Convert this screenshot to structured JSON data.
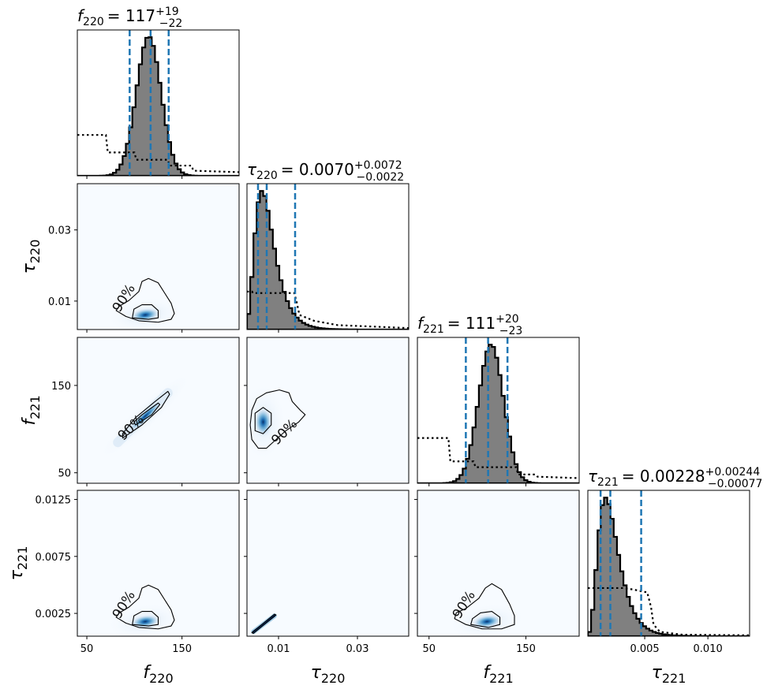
{
  "chart_data": {
    "type": "corner",
    "parameters": [
      {
        "name": "f220",
        "sym": "f",
        "sub": "220",
        "range": [
          40,
          210
        ],
        "ticks": [
          50,
          150
        ],
        "title": {
          "prefix": "= ",
          "value": "117",
          "plus": "+19",
          "minus": "−22"
        },
        "median": 117,
        "lower": 95,
        "upper": 136,
        "mode": 115,
        "sd": 13,
        "skew": 0,
        "prior": [
          {
            "x": 40,
            "y": 0.28
          },
          {
            "x": 70,
            "y": 0.28
          },
          {
            "x": 72,
            "y": 0.16
          },
          {
            "x": 100,
            "y": 0.16
          },
          {
            "x": 102,
            "y": 0.11
          },
          {
            "x": 135,
            "y": 0.11
          },
          {
            "x": 137,
            "y": 0.07
          },
          {
            "x": 160,
            "y": 0.07
          },
          {
            "x": 162,
            "y": 0.035
          },
          {
            "x": 210,
            "y": 0.025
          }
        ]
      },
      {
        "name": "tau220",
        "sym": "τ",
        "sub": "220",
        "range": [
          0.002,
          0.043
        ],
        "ticks": [
          0.01,
          0.03
        ],
        "title": {
          "prefix": "= ",
          "value": "0.0070",
          "plus": "+0.0072",
          "minus": "−0.0022"
        },
        "median": 0.007,
        "lower": 0.0048,
        "upper": 0.0142,
        "mode": 0.0058,
        "sd": 0.0022,
        "skew": 1,
        "prior": [
          {
            "x": 0.002,
            "y": 0.26
          },
          {
            "x": 0.0033,
            "y": 0.26
          },
          {
            "x": 0.0035,
            "y": 0.25
          },
          {
            "x": 0.014,
            "y": 0.25
          },
          {
            "x": 0.0145,
            "y": 0.2
          },
          {
            "x": 0.0153,
            "y": 0.1
          },
          {
            "x": 0.019,
            "y": 0.06
          },
          {
            "x": 0.025,
            "y": 0.03
          },
          {
            "x": 0.043,
            "y": 0.01
          }
        ]
      },
      {
        "name": "f221",
        "sym": "f",
        "sub": "221",
        "range": [
          38,
          205
        ],
        "ticks": [
          50,
          150
        ],
        "title": {
          "prefix": "= ",
          "value": "111",
          "plus": "+20",
          "minus": "−23"
        },
        "median": 111,
        "lower": 88,
        "upper": 131,
        "mode": 114,
        "sd": 13,
        "skew": 0,
        "prior": [
          {
            "x": 38,
            "y": 0.31
          },
          {
            "x": 70,
            "y": 0.31
          },
          {
            "x": 72,
            "y": 0.15
          },
          {
            "x": 96,
            "y": 0.15
          },
          {
            "x": 98,
            "y": 0.11
          },
          {
            "x": 140,
            "y": 0.11
          },
          {
            "x": 142,
            "y": 0.06
          },
          {
            "x": 160,
            "y": 0.06
          },
          {
            "x": 162,
            "y": 0.045
          },
          {
            "x": 205,
            "y": 0.035
          }
        ]
      },
      {
        "name": "tau221",
        "sym": "τ",
        "sub": "221",
        "range": [
          0.0005,
          0.0133
        ],
        "ticks": [
          0.005,
          0.01
        ],
        "tick_labels": [
          "0.005",
          "0.010"
        ],
        "left_tick_labels": [
          "0.0125",
          "0.0075",
          "0.0025"
        ],
        "left_ticks": [
          0.0125,
          0.0075,
          0.0025
        ],
        "title": {
          "prefix": "= ",
          "value": "0.00228",
          "plus": "+0.00244",
          "minus": "−0.00077"
        },
        "median": 0.00228,
        "lower": 0.00151,
        "upper": 0.00472,
        "mode": 0.0019,
        "sd": 0.0007,
        "skew": 1,
        "prior": [
          {
            "x": 0.0005,
            "y": 0.33
          },
          {
            "x": 0.0033,
            "y": 0.33
          },
          {
            "x": 0.0041,
            "y": 0.32
          },
          {
            "x": 0.0052,
            "y": 0.3
          },
          {
            "x": 0.0055,
            "y": 0.2
          },
          {
            "x": 0.0057,
            "y": 0.08
          },
          {
            "x": 0.0062,
            "y": 0.03
          },
          {
            "x": 0.008,
            "y": 0.01
          },
          {
            "x": 0.0133,
            "y": 0.006
          }
        ]
      }
    ],
    "y_ticks": {
      "tau220": {
        "ticks": [
          0.01,
          0.03
        ],
        "labels": [
          "0.01",
          "0.03"
        ]
      },
      "f221": {
        "ticks": [
          50,
          150
        ],
        "labels": [
          "50",
          "150"
        ]
      },
      "tau221": {
        "ticks": [
          0.0125,
          0.0075,
          0.0025
        ],
        "labels": [
          "0.0125",
          "0.0075",
          "0.0025"
        ]
      }
    },
    "x_tick_labels": {
      "f220": [
        "50",
        "150"
      ],
      "tau220": [
        "0.01",
        "0.03"
      ],
      "f221": [
        "50",
        "150"
      ],
      "tau221": [
        "0.005",
        "0.010"
      ]
    },
    "contour_label": "90%",
    "colors": {
      "hist_fill": "#808080",
      "quantile": "#1f77b4",
      "density_high": "#08306b",
      "density_low": "#f7fbff",
      "contour": "#000000"
    }
  }
}
